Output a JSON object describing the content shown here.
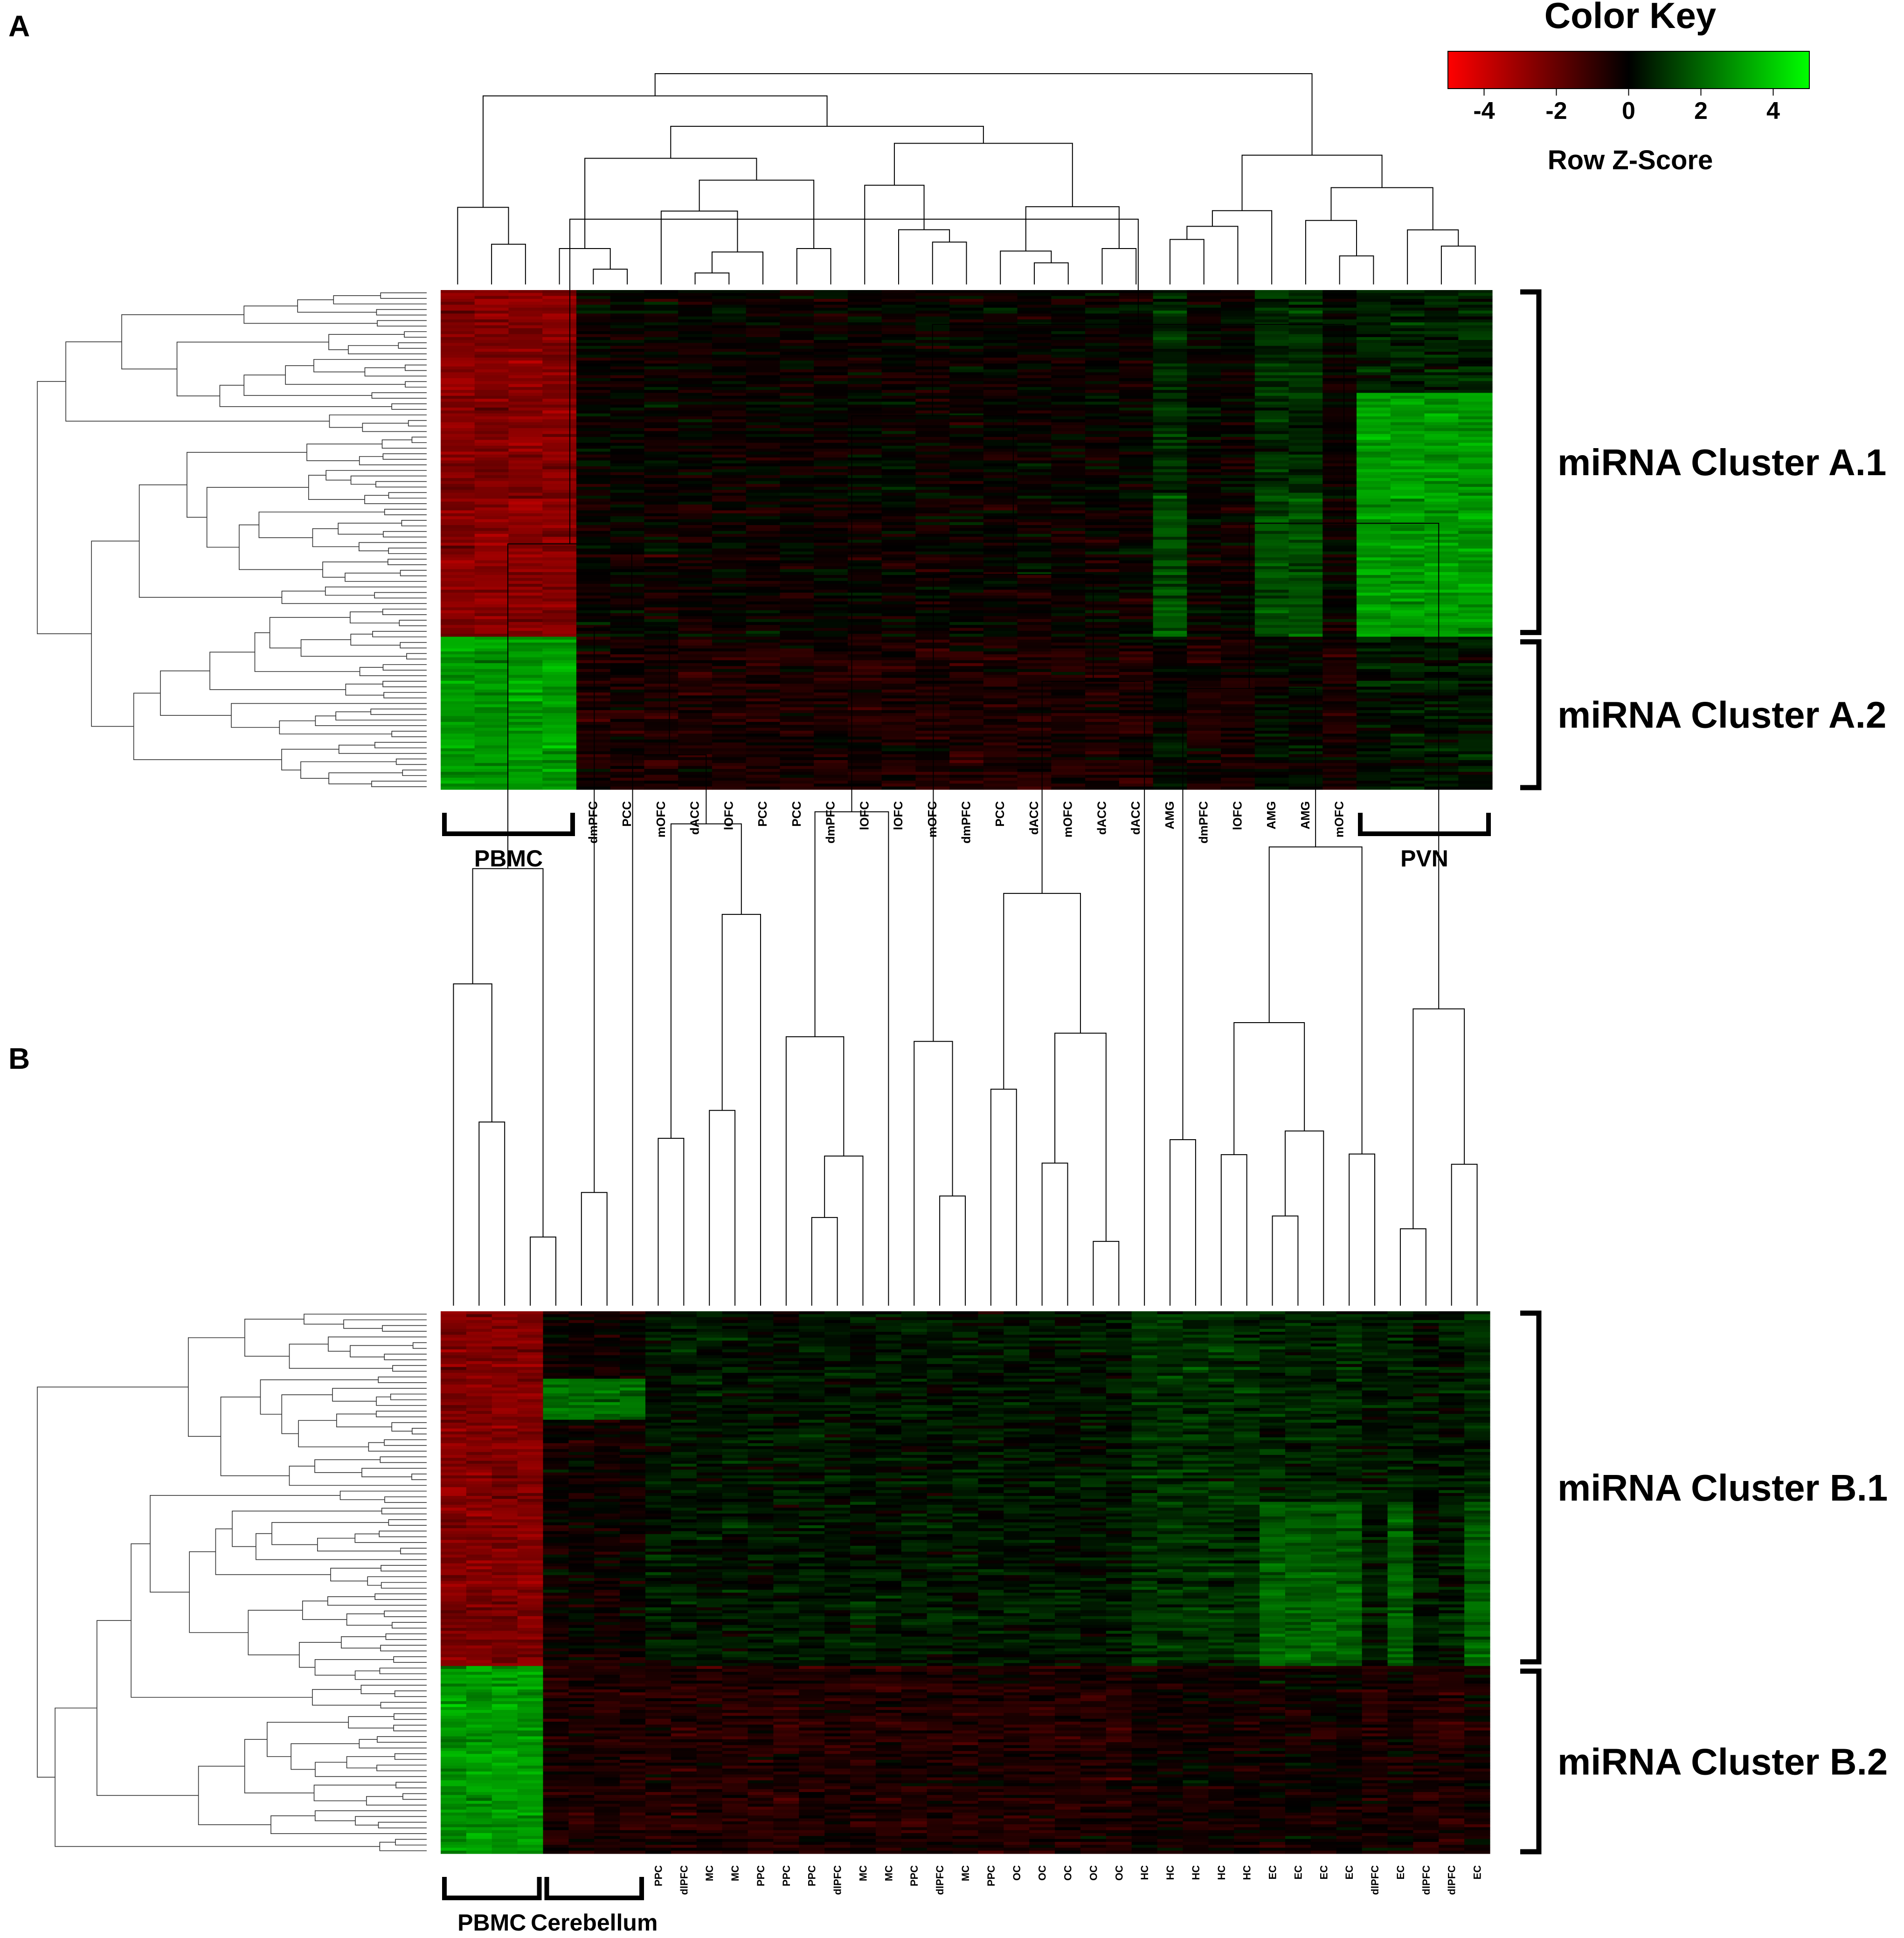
{
  "panel_a": {
    "label": "A"
  },
  "panel_b": {
    "label": "B"
  },
  "color_key": {
    "title": "Color Key",
    "subtitle": "Row Z-Score",
    "ticks": [
      "-4",
      "-2",
      "0",
      "2",
      "4"
    ],
    "tick_values": [
      -4,
      -2,
      0,
      2,
      4
    ],
    "range": [
      -5,
      5
    ],
    "colors": {
      "low": "#ff0000",
      "mid": "#000000",
      "high": "#00ff00"
    }
  },
  "chart_data": [
    {
      "type": "heatmap",
      "panel": "A",
      "value": "Row Z-Score",
      "zlim": [
        -5,
        5
      ],
      "columns": [
        "PBMC",
        "PBMC",
        "PBMC",
        "PBMC",
        "dmPFC",
        "PCC",
        "mOFC",
        "dACC",
        "lOFC",
        "PCC",
        "PCC",
        "dmPFC",
        "lOFC",
        "lOFC",
        "mOFC",
        "dmPFC",
        "PCC",
        "dACC",
        "mOFC",
        "dACC",
        "dACC",
        "AMG",
        "dmPFC",
        "lOFC",
        "AMG",
        "AMG",
        "mOFC",
        "PVN",
        "PVN",
        "PVN",
        "PVN"
      ],
      "column_labels": [
        "dmPFC",
        "PCC",
        "mOFC",
        "dACC",
        "lOFC",
        "PCC",
        "PCC",
        "dmPFC",
        "lOFC",
        "lOFC",
        "mOFC",
        "dmPFC",
        "PCC",
        "dACC",
        "mOFC",
        "dACC",
        "dACC",
        "AMG",
        "dmPFC",
        "lOFC",
        "AMG",
        "AMG",
        "mOFC"
      ],
      "column_groups": [
        {
          "label": "PBMC",
          "columns": 4
        },
        {
          "label": "PVN",
          "columns": 4
        }
      ],
      "row_clusters": [
        {
          "label": "miRNA Cluster A.1",
          "pattern": "low in PBMC, high in PVN and AMG"
        },
        {
          "label": "miRNA Cluster A.2",
          "pattern": "high in PBMC, near zero in brain regions"
        }
      ],
      "row_dendrogram": true,
      "column_dendrogram": true
    },
    {
      "type": "heatmap",
      "panel": "B",
      "value": "Row Z-Score",
      "zlim": [
        -5,
        5
      ],
      "columns": [
        "PBMC",
        "PBMC",
        "PBMC",
        "PBMC",
        "Cerebellum",
        "Cerebellum",
        "Cerebellum",
        "Cerebellum",
        "PPC",
        "dlPFC",
        "MC",
        "MC",
        "PPC",
        "PPC",
        "PPC",
        "dlPFC",
        "MC",
        "MC",
        "PPC",
        "dlPFC",
        "MC",
        "PPC",
        "OC",
        "OC",
        "OC",
        "OC",
        "OC",
        "HC",
        "HC",
        "HC",
        "HC",
        "HC",
        "EC",
        "EC",
        "EC",
        "EC",
        "dlPFC",
        "EC",
        "dlPFC",
        "dlPFC",
        "EC"
      ],
      "column_labels": [
        "PPC",
        "dlPFC",
        "MC",
        "MC",
        "PPC",
        "PPC",
        "PPC",
        "dlPFC",
        "MC",
        "MC",
        "PPC",
        "dlPFC",
        "MC",
        "PPC",
        "OC",
        "OC",
        "OC",
        "OC",
        "OC",
        "HC",
        "HC",
        "HC",
        "HC",
        "HC",
        "EC",
        "EC",
        "EC",
        "EC",
        "dlPFC",
        "EC",
        "dlPFC",
        "dlPFC",
        "EC"
      ],
      "column_groups": [
        {
          "label": "PBMC",
          "columns": 4
        },
        {
          "label": "Cerebellum",
          "columns": 4
        }
      ],
      "row_clusters": [
        {
          "label": "miRNA Cluster B.1",
          "pattern": "low in PBMC, high in EC and HC"
        },
        {
          "label": "miRNA Cluster B.2",
          "pattern": "high in PBMC, near zero in brain regions"
        }
      ],
      "row_dendrogram": true,
      "column_dendrogram": true
    }
  ]
}
